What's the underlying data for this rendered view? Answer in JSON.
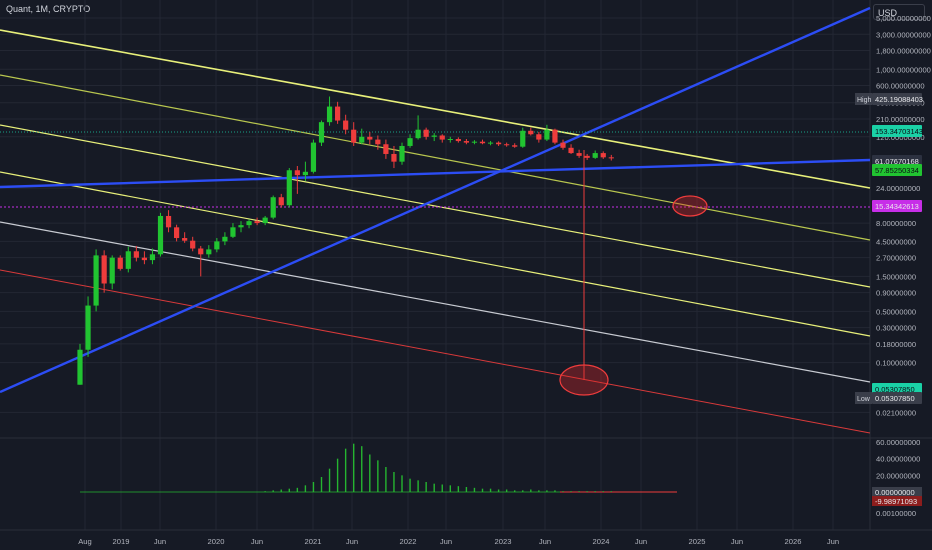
{
  "header": {
    "title": "Quant, 1M, CRYPTO",
    "currency": "USD"
  },
  "colors": {
    "background": "#161a25",
    "grid": "#232733",
    "up": "#21c431",
    "down": "#ef3c3c",
    "channel_upper": "#e8f07a",
    "channel_mid": "#b9c74f",
    "channel_lower_white": "#c8cbd2",
    "channel_red": "#d93a3a",
    "trend_blue": "#2c4df5",
    "magenta": "#c72ee8",
    "teal": "#1ad1a6",
    "volume": "#25b530"
  },
  "chart_data": {
    "type": "candlestick",
    "title": "Quant, 1M, CRYPTO",
    "scale": "log",
    "x_tick_labels": [
      "Aug",
      "2019",
      "Jun",
      "2020",
      "Jun",
      "2021",
      "Jun",
      "2022",
      "Jun",
      "2023",
      "Jun",
      "2024",
      "Jun",
      "2025",
      "Jun",
      "2026",
      "Jun"
    ],
    "y_tick_labels": [
      "5,000.00000000",
      "3,000.00000000",
      "1,800.00000000",
      "1,000.00000000",
      "600.00000000",
      "350.00000000",
      "210.00000000",
      "120.00000000",
      "24.00000000",
      "8.00000000",
      "4.50000000",
      "2.70000000",
      "1.50000000",
      "0.90000000",
      "0.50000000",
      "0.30000000",
      "0.18000000",
      "0.10000000",
      "0.02100000"
    ],
    "price_labels": [
      {
        "text": "High",
        "value": "425.19088403",
        "color": "#3a3e4a"
      },
      {
        "value": "153.34703143",
        "color": "#1ad1a6"
      },
      {
        "value": "61.07670168",
        "color": "#2c3140"
      },
      {
        "value": "57.85250334",
        "color": "#21c431"
      },
      {
        "value": "15.34342613",
        "color": "#c72ee8"
      },
      {
        "value": "0.05307850",
        "color": "#1ad1a6"
      },
      {
        "text": "Low",
        "value": "0.05307850",
        "color": "#3a3e4a"
      }
    ],
    "ohlc": [
      [
        0.05,
        0.18,
        0.05,
        0.15
      ],
      [
        0.15,
        0.8,
        0.12,
        0.6
      ],
      [
        0.6,
        3.5,
        0.5,
        2.9
      ],
      [
        2.9,
        3.4,
        0.9,
        1.2
      ],
      [
        1.2,
        2.9,
        1.0,
        2.7
      ],
      [
        2.7,
        2.9,
        1.8,
        1.9
      ],
      [
        1.9,
        3.8,
        1.7,
        3.3
      ],
      [
        3.3,
        3.9,
        2.4,
        2.7
      ],
      [
        2.7,
        3.3,
        2.2,
        2.5
      ],
      [
        2.5,
        3.6,
        2.2,
        3.0
      ],
      [
        3.0,
        11.0,
        2.8,
        10.0
      ],
      [
        10.0,
        12.0,
        6.0,
        7.0
      ],
      [
        7.0,
        7.6,
        4.5,
        5.0
      ],
      [
        5.0,
        6.0,
        4.3,
        4.6
      ],
      [
        4.6,
        5.2,
        3.3,
        3.6
      ],
      [
        3.6,
        3.9,
        1.5,
        3.0
      ],
      [
        3.0,
        4.0,
        2.7,
        3.5
      ],
      [
        3.5,
        5.0,
        3.2,
        4.5
      ],
      [
        4.5,
        6.0,
        4.0,
        5.2
      ],
      [
        5.2,
        8.0,
        5.0,
        7.0
      ],
      [
        7.0,
        8.5,
        6.0,
        7.5
      ],
      [
        7.5,
        9.0,
        6.8,
        8.5
      ],
      [
        8.5,
        9.5,
        7.5,
        8.0
      ],
      [
        8.0,
        10.0,
        7.5,
        9.5
      ],
      [
        9.5,
        19.0,
        9.0,
        18.0
      ],
      [
        18.0,
        20.0,
        13.0,
        14.0
      ],
      [
        14.0,
        45.0,
        13.0,
        42.0
      ],
      [
        42.0,
        48.0,
        20.0,
        36.0
      ],
      [
        36.0,
        55.0,
        30.0,
        40.0
      ],
      [
        40.0,
        110.0,
        38.0,
        100.0
      ],
      [
        100.0,
        200.0,
        90.0,
        190.0
      ],
      [
        190.0,
        425.0,
        170.0,
        310.0
      ],
      [
        310.0,
        360.0,
        180.0,
        200.0
      ],
      [
        200.0,
        240.0,
        130.0,
        150.0
      ],
      [
        150.0,
        190.0,
        90.0,
        100.0
      ],
      [
        100.0,
        155.0,
        95.0,
        120.0
      ],
      [
        120.0,
        140.0,
        95.0,
        110.0
      ],
      [
        110.0,
        125.0,
        80.0,
        95.0
      ],
      [
        95.0,
        110.0,
        60.0,
        70.0
      ],
      [
        70.0,
        90.0,
        45.0,
        55.0
      ],
      [
        55.0,
        100.0,
        50.0,
        90.0
      ],
      [
        90.0,
        130.0,
        85.0,
        115.0
      ],
      [
        115.0,
        235.0,
        110.0,
        150.0
      ],
      [
        150.0,
        160.0,
        110.0,
        120.0
      ],
      [
        120.0,
        135.0,
        105.0,
        125.0
      ],
      [
        125.0,
        130.0,
        100.0,
        110.0
      ],
      [
        110.0,
        120.0,
        100.0,
        112.0
      ],
      [
        112.0,
        118.0,
        100.0,
        105.0
      ],
      [
        105.0,
        112.0,
        95.0,
        100.0
      ],
      [
        100.0,
        108.0,
        95.0,
        103.0
      ],
      [
        103.0,
        110.0,
        95.0,
        98.0
      ],
      [
        98.0,
        105.0,
        92.0,
        100.0
      ],
      [
        100.0,
        104.0,
        90.0,
        95.0
      ],
      [
        95.0,
        100.0,
        88.0,
        92.0
      ],
      [
        92.0,
        98.0,
        85.0,
        88.0
      ],
      [
        88.0,
        160.0,
        85.0,
        145.0
      ],
      [
        145.0,
        160.0,
        125.0,
        130.0
      ],
      [
        130.0,
        140.0,
        100.0,
        110.0
      ],
      [
        110.0,
        175.0,
        105.0,
        150.0
      ],
      [
        150.0,
        155.0,
        95.0,
        100.0
      ],
      [
        100.0,
        110.0,
        80.0,
        85.0
      ],
      [
        85.0,
        95.0,
        70.0,
        72.0
      ],
      [
        72.0,
        80.0,
        62.0,
        66.0
      ],
      [
        66.0,
        70.0,
        58.0,
        62.0
      ],
      [
        62.0,
        78.0,
        60.0,
        72.0
      ],
      [
        72.0,
        76.0,
        60.0,
        63.0
      ],
      [
        63.0,
        68.0,
        57.0,
        61.0
      ]
    ],
    "volume_axis_labels": [
      "60.00000000",
      "40.00000000",
      "20.00000000",
      "0.00000000",
      "0.00100000"
    ],
    "volume_current_labels": [
      "0.00000000",
      "-9.98971093"
    ],
    "volume": [
      0,
      0,
      0,
      0,
      0,
      0,
      0,
      0,
      0,
      0,
      0,
      0,
      0,
      0,
      0,
      0,
      0,
      0,
      0,
      0,
      0,
      0,
      0,
      1,
      2,
      3,
      4,
      5,
      8,
      12,
      18,
      28,
      40,
      52,
      58,
      55,
      45,
      38,
      30,
      24,
      20,
      16,
      14,
      12,
      10,
      9,
      8,
      7,
      6,
      5,
      4,
      4,
      3,
      3,
      2,
      2,
      3,
      2,
      2,
      2,
      1,
      1,
      1,
      1,
      1,
      1,
      1
    ]
  }
}
